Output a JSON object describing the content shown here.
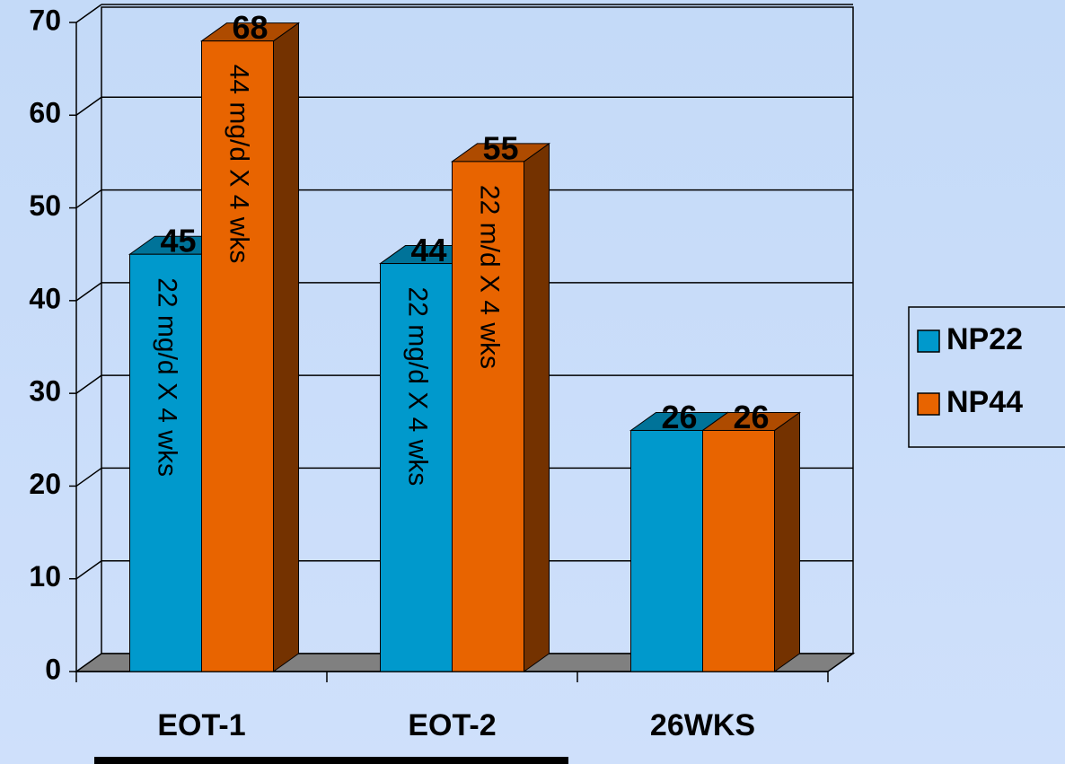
{
  "chart_data": {
    "type": "bar3d",
    "categories": [
      "EOT-1",
      "EOT-2",
      "26WKS"
    ],
    "series": [
      {
        "name": "NP22",
        "color": "#0099cc",
        "values": [
          45,
          44,
          26
        ],
        "bar_labels": [
          "22 mg/d X 4 wks",
          "22 mg/d X 4 wks",
          null
        ]
      },
      {
        "name": "NP44",
        "color": "#e86400",
        "values": [
          68,
          55,
          26
        ],
        "bar_labels": [
          "44 mg/d X 4 wks",
          "22 m/d X 4 wks",
          null
        ]
      }
    ],
    "ylim": [
      0,
      70
    ],
    "yticks": [
      0,
      10,
      20,
      30,
      40,
      50,
      60,
      70
    ],
    "grid": true,
    "legend": "right"
  }
}
